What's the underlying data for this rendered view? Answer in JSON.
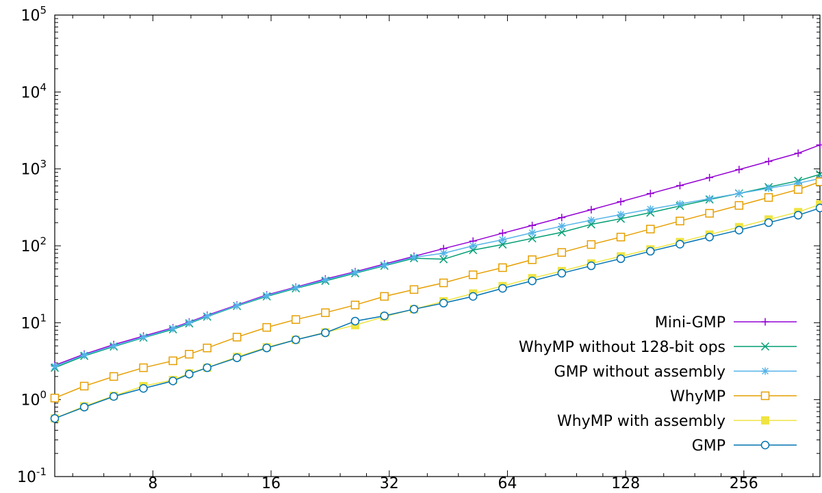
{
  "chart_data": {
    "type": "line",
    "title": "",
    "xlabel": "",
    "ylabel": "",
    "x_scale": "log2",
    "y_scale": "log10",
    "xlim": [
      4.5,
      400
    ],
    "ylim": [
      0.1,
      100000
    ],
    "grid": false,
    "legend_position": "bottom-right",
    "x_ticks": [
      {
        "value": 8,
        "label": "8"
      },
      {
        "value": 16,
        "label": "16"
      },
      {
        "value": 32,
        "label": "32"
      },
      {
        "value": 64,
        "label": "64"
      },
      {
        "value": 128,
        "label": "128"
      },
      {
        "value": 256,
        "label": "256"
      }
    ],
    "y_ticks": [
      {
        "value": 0.1,
        "base": "10",
        "exp": "-1"
      },
      {
        "value": 1,
        "base": "10",
        "exp": "0"
      },
      {
        "value": 10,
        "base": "10",
        "exp": "1"
      },
      {
        "value": 100,
        "base": "10",
        "exp": "2"
      },
      {
        "value": 1000,
        "base": "10",
        "exp": "3"
      },
      {
        "value": 10000,
        "base": "10",
        "exp": "4"
      },
      {
        "value": 100000,
        "base": "10",
        "exp": "5"
      }
    ],
    "x": [
      4.5,
      5.35,
      6.36,
      7.57,
      9.0,
      9.9,
      11.0,
      13.1,
      15.6,
      18.5,
      22.0,
      26.2,
      31.1,
      37.0,
      44.0,
      52.3,
      62.2,
      74.0,
      88.0,
      104.6,
      124.4,
      148.0,
      176.0,
      209.3,
      248.9,
      296.0,
      352.0,
      400.0
    ],
    "series": [
      {
        "name": "Mini-GMP",
        "color": "#9400d3",
        "marker": "plus",
        "values": [
          2.8,
          3.9,
          5.2,
          6.7,
          8.6,
          10.2,
          12.5,
          17,
          23,
          29,
          37,
          46,
          58,
          73,
          92,
          115,
          146,
          184,
          233,
          295,
          375,
          478,
          607,
          770,
          980,
          1250,
          1600,
          2050
        ]
      },
      {
        "name": "WhyMP without 128-bit ops",
        "color": "#009e73",
        "marker": "x",
        "values": [
          2.6,
          3.7,
          4.9,
          6.4,
          8.2,
          9.8,
          12,
          16.5,
          22,
          28,
          35,
          44,
          55,
          69,
          67,
          88,
          104,
          125,
          150,
          190,
          225,
          270,
          330,
          400,
          480,
          580,
          700,
          850
        ]
      },
      {
        "name": "GMP without assembly",
        "color": "#56b4e9",
        "marker": "star",
        "values": [
          2.7,
          3.8,
          5.0,
          6.5,
          8.4,
          10,
          12.2,
          16.7,
          22.5,
          28.5,
          36,
          45,
          56,
          71,
          80,
          100,
          120,
          148,
          180,
          215,
          255,
          300,
          350,
          410,
          480,
          560,
          650,
          750
        ]
      },
      {
        "name": "WhyMP",
        "color": "#e69f00",
        "marker": "square",
        "values": [
          1.05,
          1.5,
          2.0,
          2.6,
          3.2,
          3.9,
          4.7,
          6.5,
          8.7,
          11,
          13.5,
          17,
          22,
          27,
          33,
          42,
          52,
          66,
          82,
          104,
          130,
          165,
          210,
          265,
          335,
          425,
          540,
          680
        ]
      },
      {
        "name": "WhyMP with assembly",
        "color": "#f0e442",
        "marker": "filled-square",
        "values": [
          0.57,
          0.82,
          1.12,
          1.5,
          1.8,
          2.2,
          2.6,
          3.6,
          4.8,
          6.0,
          7.5,
          9.3,
          12,
          15,
          19,
          24,
          30,
          38,
          47,
          59,
          73,
          90,
          112,
          140,
          175,
          220,
          275,
          345
        ]
      },
      {
        "name": "GMP",
        "color": "#0072b2",
        "marker": "circle",
        "values": [
          0.57,
          0.8,
          1.1,
          1.4,
          1.75,
          2.15,
          2.6,
          3.5,
          4.7,
          6.0,
          7.4,
          10.5,
          12.3,
          15,
          18,
          22,
          28,
          35,
          44,
          55,
          68,
          85,
          105,
          130,
          160,
          200,
          250,
          310
        ]
      }
    ]
  }
}
